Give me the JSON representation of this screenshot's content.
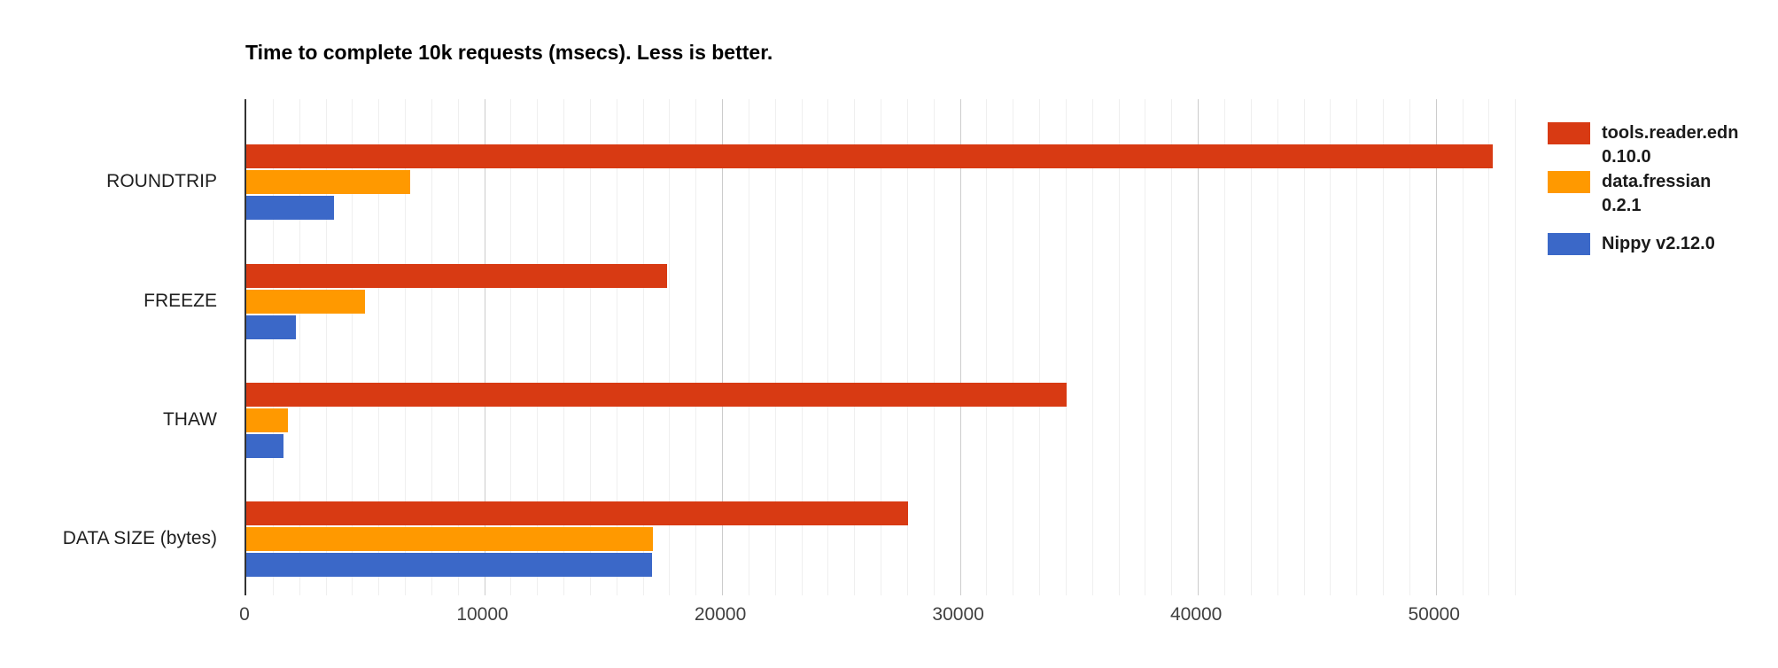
{
  "title": "Time to complete 10k requests (msecs). Less is better.",
  "chart_data": {
    "type": "bar",
    "orientation": "horizontal",
    "title": "Time to complete 10k requests (msecs). Less is better.",
    "categories": [
      "ROUNDTRIP",
      "FREEZE",
      "THAW",
      "DATA SIZE (bytes)"
    ],
    "series": [
      {
        "name": "tools.reader.edn 0.10.0",
        "color": "#d83a13",
        "values": [
          52400,
          17700,
          34500,
          27800
        ]
      },
      {
        "name": "data.fressian 0.2.1",
        "color": "#ff9900",
        "values": [
          6900,
          5000,
          1750,
          17100
        ]
      },
      {
        "name": "Nippy v2.12.0",
        "color": "#3b68c8",
        "values": [
          3700,
          2100,
          1550,
          17050
        ]
      }
    ],
    "xlabel": "",
    "ylabel": "",
    "xticks": [
      0,
      10000,
      20000,
      30000,
      40000,
      50000
    ],
    "xlim": [
      0,
      53400
    ],
    "grid": {
      "major_color": "#cccccc",
      "minor_color": "#efefef",
      "minor_divisions_per_major": 9
    },
    "legend_position": "right"
  },
  "legend": {
    "items": [
      {
        "lines": [
          "tools.reader.edn",
          "0.10.0"
        ],
        "color": "#d83a13"
      },
      {
        "lines": [
          "data.fressian",
          "0.2.1"
        ],
        "color": "#ff9900"
      },
      {
        "lines": [
          "Nippy v2.12.0"
        ],
        "color": "#3b68c8"
      }
    ]
  }
}
